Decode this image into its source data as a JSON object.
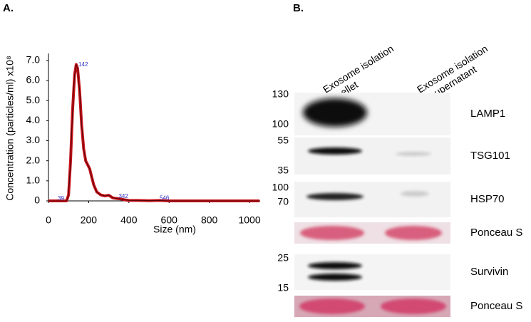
{
  "panel_labels": [
    "A.",
    "B."
  ],
  "chart_data": {
    "type": "line",
    "x_label": "Size (nm)",
    "y_label": "Concentration (particles/ml) x10⁸",
    "x": [
      0,
      90,
      100,
      110,
      120,
      130,
      138,
      145,
      155,
      165,
      175,
      185,
      195,
      205,
      215,
      225,
      240,
      260,
      280,
      300,
      320,
      340,
      360,
      380,
      400,
      450,
      500,
      550,
      600,
      700,
      800,
      1000,
      1050
    ],
    "values": [
      0,
      0,
      0.3,
      2.0,
      4.5,
      6.3,
      6.8,
      6.6,
      5.5,
      3.8,
      2.6,
      2.0,
      1.8,
      1.6,
      1.2,
      0.8,
      0.45,
      0.3,
      0.25,
      0.28,
      0.15,
      0.12,
      0.1,
      0.05,
      0.03,
      0.02,
      0.01,
      0.02,
      0,
      0,
      0,
      0,
      0
    ],
    "color": "#c8141c",
    "xlim": [
      0,
      1053
    ],
    "ylim": [
      0,
      7.35
    ],
    "xticks": [
      0,
      200,
      400,
      600,
      800,
      1000
    ],
    "yticks": [
      0,
      {
        "value": 1,
        "label": "1.0"
      },
      {
        "value": 2,
        "label": "2.0"
      },
      {
        "value": 3,
        "label": "3.0"
      },
      {
        "value": 4,
        "label": "4.0"
      },
      {
        "value": 5,
        "label": "5.0"
      },
      {
        "value": 6,
        "label": "6.0"
      },
      {
        "value": 7,
        "label": "7.0"
      }
    ],
    "peak_labels": [
      39,
      142,
      342,
      546
    ]
  },
  "blot": {
    "lanes": [
      [
        "Exosome isolation",
        "pellet"
      ],
      [
        "Exosome isolation",
        "supernatant"
      ]
    ],
    "rows": [
      {
        "name": "LAMP1",
        "markers": [
          "130",
          "100"
        ]
      },
      {
        "name": "TSG101",
        "markers": [
          "55",
          "35"
        ]
      },
      {
        "name": "HSP70",
        "markers": [
          "100",
          "70"
        ]
      },
      {
        "name": "Ponceau S",
        "markers": []
      },
      {
        "name": "Survivin",
        "markers": [
          "25",
          "15"
        ]
      },
      {
        "name": "Ponceau S",
        "markers": []
      }
    ]
  }
}
